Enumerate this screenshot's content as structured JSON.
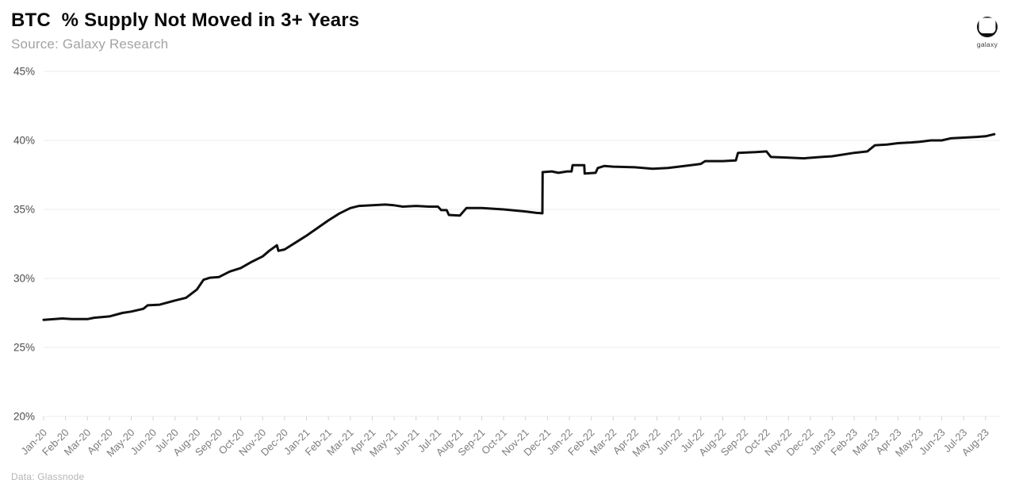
{
  "header": {
    "title": "BTC  % Supply Not Moved in 3+ Years",
    "subtitle": "Source: Galaxy Research"
  },
  "footer": {
    "data_source": "Data: Glassnode"
  },
  "logo": {
    "icon": "galaxy-helmet-icon",
    "label": "galaxy"
  },
  "colors": {
    "background": "#ffffff",
    "line": "#0f0f0f",
    "grid": "#ececec",
    "tick": "#d4d4d4",
    "y_label": "#4c4c4c",
    "x_label": "#7d7d7d"
  },
  "chart_data": {
    "type": "line",
    "title": "BTC % Supply Not Moved in 3+ Years",
    "xlabel": "",
    "ylabel": "",
    "ylim": [
      20,
      45
    ],
    "y_tick_values": [
      20,
      25,
      30,
      35,
      40,
      45
    ],
    "y_tick_labels": [
      "20%",
      "25%",
      "30%",
      "35%",
      "40%",
      "45%"
    ],
    "grid": "horizontal",
    "legend": "none",
    "series_name": "BTC % supply not moved in 3+ years",
    "categories": [
      "Jan-20",
      "Feb-20",
      "Mar-20",
      "Apr-20",
      "May-20",
      "Jun-20",
      "Jul-20",
      "Aug-20",
      "Sep-20",
      "Oct-20",
      "Nov-20",
      "Dec-20",
      "Jan-21",
      "Feb-21",
      "Mar-21",
      "Apr-21",
      "May-21",
      "Jun-21",
      "Jul-21",
      "Aug-21",
      "Sep-21",
      "Oct-21",
      "Nov-21",
      "Dec-21",
      "Jan-22",
      "Feb-22",
      "Mar-22",
      "Apr-22",
      "May-22",
      "Jun-22",
      "Jul-22",
      "Aug-22",
      "Sep-22",
      "Oct-22",
      "Nov-22",
      "Dec-22",
      "Jan-23",
      "Feb-23",
      "Mar-23",
      "Apr-23",
      "May-23",
      "Jun-23",
      "Jul-23",
      "Aug-23"
    ],
    "monthly_values": [
      27.0,
      27.1,
      27.05,
      27.25,
      27.6,
      28.0,
      28.4,
      29.2,
      30.1,
      30.75,
      31.6,
      32.1,
      33.1,
      34.2,
      35.1,
      35.3,
      35.3,
      35.25,
      35.2,
      34.6,
      35.1,
      35.0,
      34.85,
      37.7,
      37.75,
      37.65,
      38.1,
      38.05,
      37.95,
      38.0,
      38.15,
      38.5,
      39.1,
      39.2,
      38.75,
      38.7,
      38.9,
      39.15,
      39.65,
      39.8,
      39.9,
      40.0,
      40.15,
      40.35
    ],
    "points": [
      [
        0,
        27.0
      ],
      [
        0.5,
        27.05
      ],
      [
        0.85,
        27.1
      ],
      [
        1.3,
        27.05
      ],
      [
        2.0,
        27.05
      ],
      [
        2.3,
        27.15
      ],
      [
        3.0,
        27.25
      ],
      [
        3.6,
        27.5
      ],
      [
        4.0,
        27.6
      ],
      [
        4.55,
        27.8
      ],
      [
        4.75,
        28.05
      ],
      [
        5.3,
        28.1
      ],
      [
        6.0,
        28.4
      ],
      [
        6.5,
        28.6
      ],
      [
        7.0,
        29.2
      ],
      [
        7.3,
        29.9
      ],
      [
        7.6,
        30.05
      ],
      [
        8.0,
        30.1
      ],
      [
        8.5,
        30.5
      ],
      [
        9.0,
        30.75
      ],
      [
        9.5,
        31.2
      ],
      [
        10.0,
        31.6
      ],
      [
        10.3,
        32.0
      ],
      [
        10.65,
        32.4
      ],
      [
        10.72,
        32.0
      ],
      [
        11.0,
        32.1
      ],
      [
        11.5,
        32.6
      ],
      [
        12.0,
        33.1
      ],
      [
        12.5,
        33.65
      ],
      [
        13.0,
        34.2
      ],
      [
        13.5,
        34.7
      ],
      [
        14.0,
        35.1
      ],
      [
        14.4,
        35.25
      ],
      [
        15.0,
        35.3
      ],
      [
        15.6,
        35.35
      ],
      [
        16.0,
        35.3
      ],
      [
        16.4,
        35.2
      ],
      [
        17.0,
        35.25
      ],
      [
        17.6,
        35.2
      ],
      [
        18.0,
        35.2
      ],
      [
        18.15,
        34.95
      ],
      [
        18.4,
        34.95
      ],
      [
        18.5,
        34.6
      ],
      [
        19.0,
        34.55
      ],
      [
        19.3,
        35.1
      ],
      [
        20.0,
        35.1
      ],
      [
        21.0,
        35.0
      ],
      [
        22.0,
        34.85
      ],
      [
        22.5,
        34.75
      ],
      [
        22.77,
        34.72
      ],
      [
        22.78,
        37.7
      ],
      [
        23.2,
        37.75
      ],
      [
        23.5,
        37.65
      ],
      [
        23.9,
        37.75
      ],
      [
        24.1,
        37.75
      ],
      [
        24.15,
        38.2
      ],
      [
        24.68,
        38.2
      ],
      [
        24.7,
        37.6
      ],
      [
        25.2,
        37.65
      ],
      [
        25.3,
        38.0
      ],
      [
        25.6,
        38.15
      ],
      [
        26.0,
        38.1
      ],
      [
        27.0,
        38.05
      ],
      [
        27.8,
        37.95
      ],
      [
        28.5,
        38.0
      ],
      [
        29.0,
        38.1
      ],
      [
        29.8,
        38.25
      ],
      [
        30.0,
        38.3
      ],
      [
        30.2,
        38.5
      ],
      [
        31.0,
        38.5
      ],
      [
        31.6,
        38.55
      ],
      [
        31.7,
        39.1
      ],
      [
        32.5,
        39.15
      ],
      [
        33.0,
        39.2
      ],
      [
        33.2,
        38.8
      ],
      [
        34.0,
        38.75
      ],
      [
        34.7,
        38.7
      ],
      [
        35.5,
        38.8
      ],
      [
        36.0,
        38.85
      ],
      [
        37.0,
        39.1
      ],
      [
        37.6,
        39.2
      ],
      [
        37.95,
        39.65
      ],
      [
        38.5,
        39.7
      ],
      [
        39.0,
        39.8
      ],
      [
        39.6,
        39.85
      ],
      [
        40.0,
        39.9
      ],
      [
        40.5,
        40.0
      ],
      [
        41.0,
        40.0
      ],
      [
        41.4,
        40.15
      ],
      [
        42.0,
        40.2
      ],
      [
        42.6,
        40.25
      ],
      [
        43.0,
        40.3
      ],
      [
        43.4,
        40.45
      ]
    ]
  }
}
